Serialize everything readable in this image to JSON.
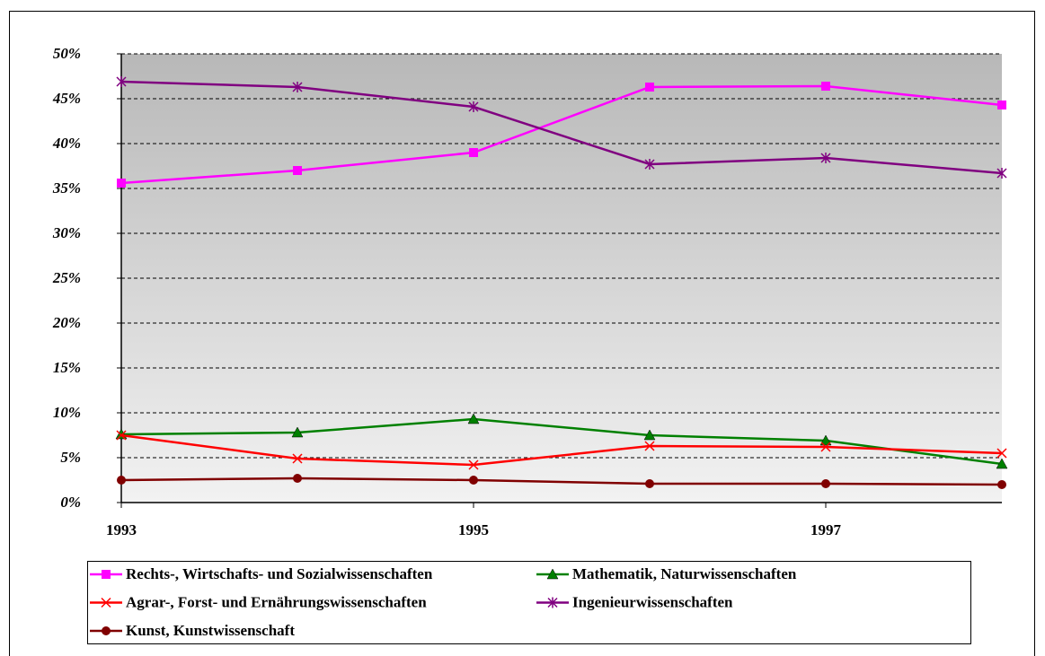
{
  "chart_data": {
    "type": "line",
    "x": [
      1993,
      1994,
      1995,
      1996,
      1997,
      1998
    ],
    "xlim": [
      1993,
      1998
    ],
    "xticks": [
      1993,
      1995,
      1997
    ],
    "ylim": [
      0,
      50
    ],
    "yticks": [
      {
        "value": 0,
        "label": "0%"
      },
      {
        "value": 5,
        "label": "5%"
      },
      {
        "value": 10,
        "label": "10%"
      },
      {
        "value": 15,
        "label": "15%"
      },
      {
        "value": 20,
        "label": "20%"
      },
      {
        "value": 25,
        "label": "25%"
      },
      {
        "value": 30,
        "label": "30%"
      },
      {
        "value": 35,
        "label": "35%"
      },
      {
        "value": 40,
        "label": "40%"
      },
      {
        "value": 45,
        "label": "45%"
      },
      {
        "value": 50,
        "label": "50%"
      }
    ],
    "grid": true,
    "series": [
      {
        "name": "Rechts-, Wirtschafts- und Sozialwissenschaften",
        "color": "#ff00ff",
        "marker": "square",
        "values": [
          35.6,
          37.0,
          39.0,
          46.3,
          46.4,
          44.3
        ]
      },
      {
        "name": "Mathematik, Naturwissenschaften",
        "color": "#008000",
        "marker": "triangle",
        "values": [
          7.6,
          7.8,
          9.3,
          7.5,
          6.9,
          4.3
        ]
      },
      {
        "name": "Agrar-, Forst- und Ernährungswissenschaften",
        "color": "#ff0000",
        "marker": "x",
        "values": [
          7.5,
          4.9,
          4.2,
          6.3,
          6.2,
          5.5
        ]
      },
      {
        "name": "Ingenieurwissenschaften",
        "color": "#800080",
        "marker": "star",
        "values": [
          46.9,
          46.3,
          44.1,
          37.7,
          38.4,
          36.7
        ]
      },
      {
        "name": "Kunst, Kunstwissenschaft",
        "color": "#800000",
        "marker": "circle",
        "values": [
          2.5,
          2.7,
          2.5,
          2.1,
          2.1,
          2.0
        ]
      }
    ]
  }
}
